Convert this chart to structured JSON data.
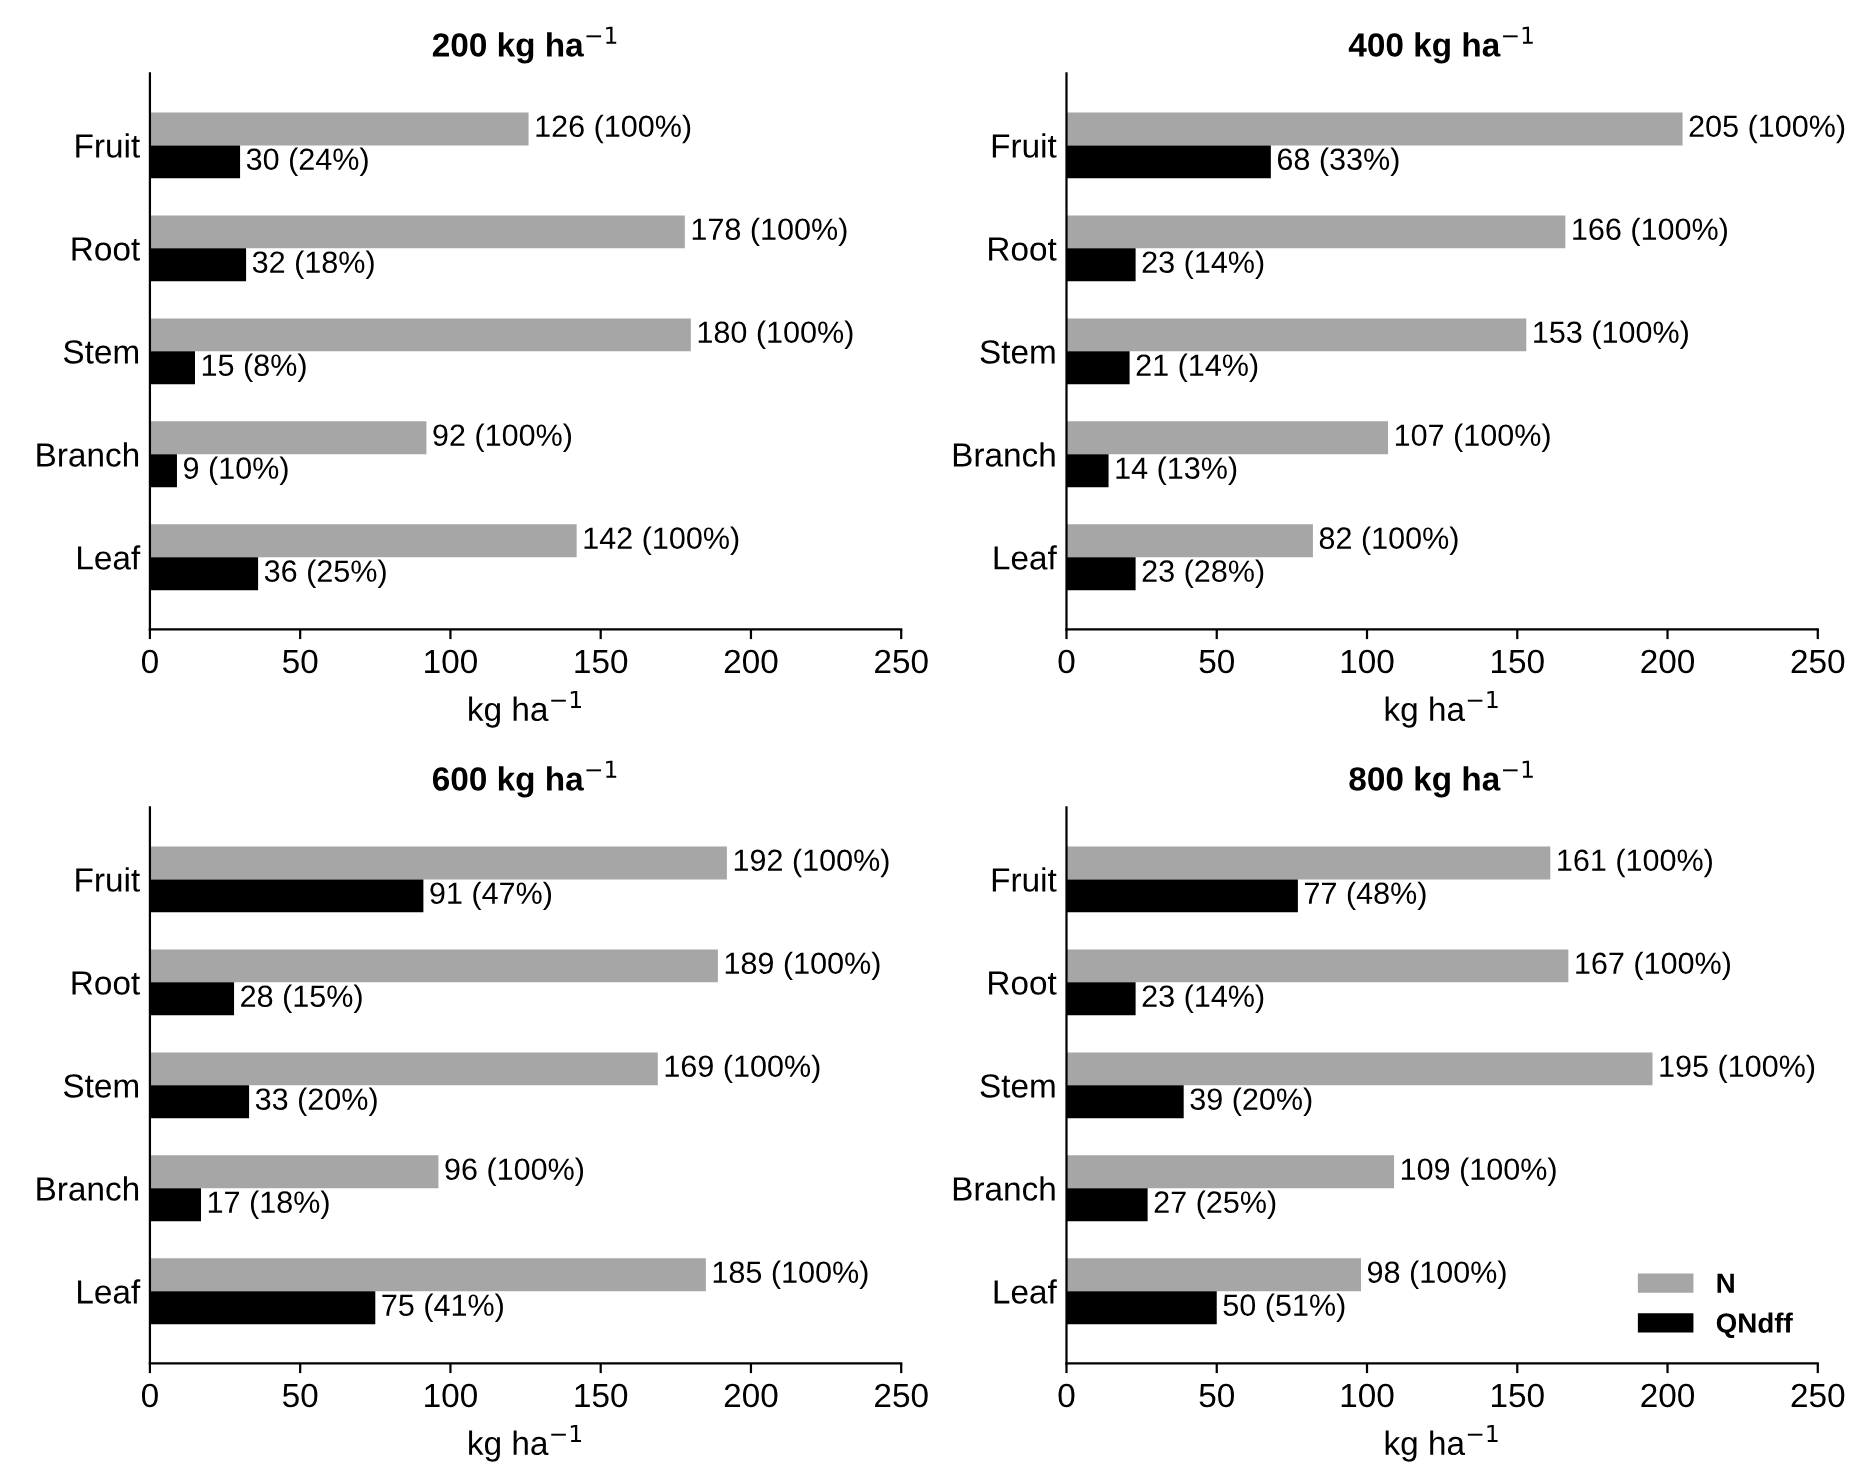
{
  "chart_data": [
    {
      "type": "bar",
      "orientation": "horizontal",
      "title": "200 kg ha$^{−1}$",
      "xlabel": "kg ha$^{−1}$",
      "categories": [
        "Fruit",
        "Root",
        "Stem",
        "Branch",
        "Leaf"
      ],
      "xlim": [
        0,
        250
      ],
      "xticks": [
        0,
        50,
        100,
        150,
        200,
        250
      ],
      "grid": false,
      "legend": false,
      "series": [
        {
          "color": "#a6a6a6",
          "values": [
            126,
            178,
            180,
            92,
            142
          ],
          "value_labels": [
            "126 (100%)",
            "178 (100%)",
            "180 (100%)",
            "92 (100%)",
            "142 (100%)"
          ]
        },
        {
          "color": "#000000",
          "values": [
            30,
            32,
            15,
            9,
            36
          ],
          "value_labels": [
            "30 (24%)",
            "32 (18%)",
            "15 (8%)",
            "9 (10%)",
            "36 (25%)"
          ]
        }
      ]
    },
    {
      "type": "bar",
      "orientation": "horizontal",
      "title": "400 kg ha$^{−1}$",
      "xlabel": "kg ha$^{−1}$",
      "categories": [
        "Fruit",
        "Root",
        "Stem",
        "Branch",
        "Leaf"
      ],
      "xlim": [
        0,
        250
      ],
      "xticks": [
        0,
        50,
        100,
        150,
        200,
        250
      ],
      "grid": false,
      "legend": false,
      "series": [
        {
          "color": "#a6a6a6",
          "values": [
            205,
            166,
            153,
            107,
            82
          ],
          "value_labels": [
            "205 (100%)",
            "166 (100%)",
            "153 (100%)",
            "107 (100%)",
            "82 (100%)"
          ]
        },
        {
          "color": "#000000",
          "values": [
            68,
            23,
            21,
            14,
            23
          ],
          "value_labels": [
            "68 (33%)",
            "23 (14%)",
            "21 (14%)",
            "14 (13%)",
            "23 (28%)"
          ]
        }
      ]
    },
    {
      "type": "bar",
      "orientation": "horizontal",
      "title": "600 kg ha$^{−1}$",
      "xlabel": "kg ha$^{−1}$",
      "categories": [
        "Fruit",
        "Root",
        "Stem",
        "Branch",
        "Leaf"
      ],
      "xlim": [
        0,
        250
      ],
      "xticks": [
        0,
        50,
        100,
        150,
        200,
        250
      ],
      "grid": false,
      "legend": false,
      "series": [
        {
          "color": "#a6a6a6",
          "values": [
            192,
            189,
            169,
            96,
            185
          ],
          "value_labels": [
            "192 (100%)",
            "189 (100%)",
            "169 (100%)",
            "96 (100%)",
            "185 (100%)"
          ]
        },
        {
          "color": "#000000",
          "values": [
            91,
            28,
            33,
            17,
            75
          ],
          "value_labels": [
            "91 (47%)",
            "28 (15%)",
            "33 (20%)",
            "17 (18%)",
            "75 (41%)"
          ]
        }
      ]
    },
    {
      "type": "bar",
      "orientation": "horizontal",
      "title": "800 kg ha$^{−1}$",
      "xlabel": "kg ha$^{−1}$",
      "categories": [
        "Fruit",
        "Root",
        "Stem",
        "Branch",
        "Leaf"
      ],
      "xlim": [
        0,
        250
      ],
      "xticks": [
        0,
        50,
        100,
        150,
        200,
        250
      ],
      "grid": false,
      "legend": "bottom right",
      "series": [
        {
          "name": "N",
          "color": "#a6a6a6",
          "values": [
            161,
            167,
            195,
            109,
            98
          ],
          "value_labels": [
            "161 (100%)",
            "167 (100%)",
            "195 (100%)",
            "109 (100%)",
            "98 (100%)"
          ]
        },
        {
          "name": "QNdff",
          "color": "#000000",
          "values": [
            77,
            23,
            39,
            27,
            50
          ],
          "value_labels": [
            "77 (48%)",
            "23 (14%)",
            "39 (20%)",
            "27 (25%)",
            "50 (51%)"
          ]
        }
      ]
    }
  ]
}
